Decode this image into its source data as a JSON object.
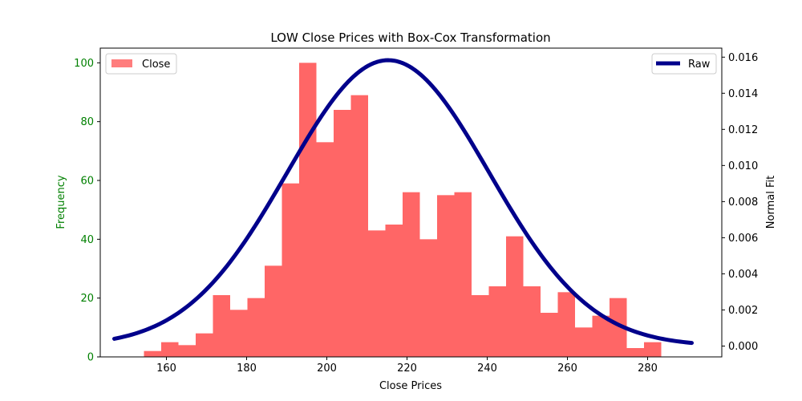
{
  "chart_data": {
    "type": "bar",
    "title": "LOW Close Prices with Box-Cox Transformation",
    "xlabel": "Close Prices",
    "ylabel": "Frequency",
    "y2label": "Normal Fit",
    "xlim": [
      143.5,
      298.5
    ],
    "ylim": [
      0,
      105
    ],
    "y2lim": [
      -0.0006,
      0.0165
    ],
    "x_ticks": [
      160,
      180,
      200,
      220,
      240,
      260,
      280
    ],
    "y_ticks": [
      0,
      20,
      40,
      60,
      80,
      100
    ],
    "y2_ticks": [
      0.0,
      0.002,
      0.004,
      0.006,
      0.008,
      0.01,
      0.012,
      0.014,
      0.016
    ],
    "y2_tick_labels": [
      "0.000",
      "0.002",
      "0.004",
      "0.006",
      "0.008",
      "0.010",
      "0.012",
      "0.014",
      "0.016"
    ],
    "histogram": {
      "name": "Close",
      "color": "#ff6666",
      "bin_width": 4.3,
      "bin_starts": [
        154.4,
        158.7,
        163.0,
        167.3,
        171.6,
        175.9,
        180.2,
        184.5,
        188.8,
        193.1,
        197.4,
        201.7,
        206.0,
        210.3,
        214.6,
        218.9,
        223.2,
        227.5,
        231.8,
        236.1,
        240.4,
        244.7,
        249.0,
        253.3,
        257.6,
        261.9,
        266.2,
        270.5,
        274.8,
        279.1
      ],
      "counts": [
        2,
        5,
        4,
        8,
        21,
        16,
        20,
        31,
        59,
        100,
        73,
        84,
        89,
        43,
        45,
        56,
        40,
        55,
        56,
        21,
        24,
        41,
        24,
        15,
        22,
        10,
        14,
        20,
        3,
        5
      ]
    },
    "normal_fit": {
      "name": "Raw",
      "color": "#00008b",
      "mean": 215.3,
      "std": 25.2,
      "x_range": [
        147.0,
        291.0
      ]
    },
    "legend_left": "upper left",
    "legend_right": "upper right",
    "grid": false,
    "left_axis_color": "#008000"
  }
}
